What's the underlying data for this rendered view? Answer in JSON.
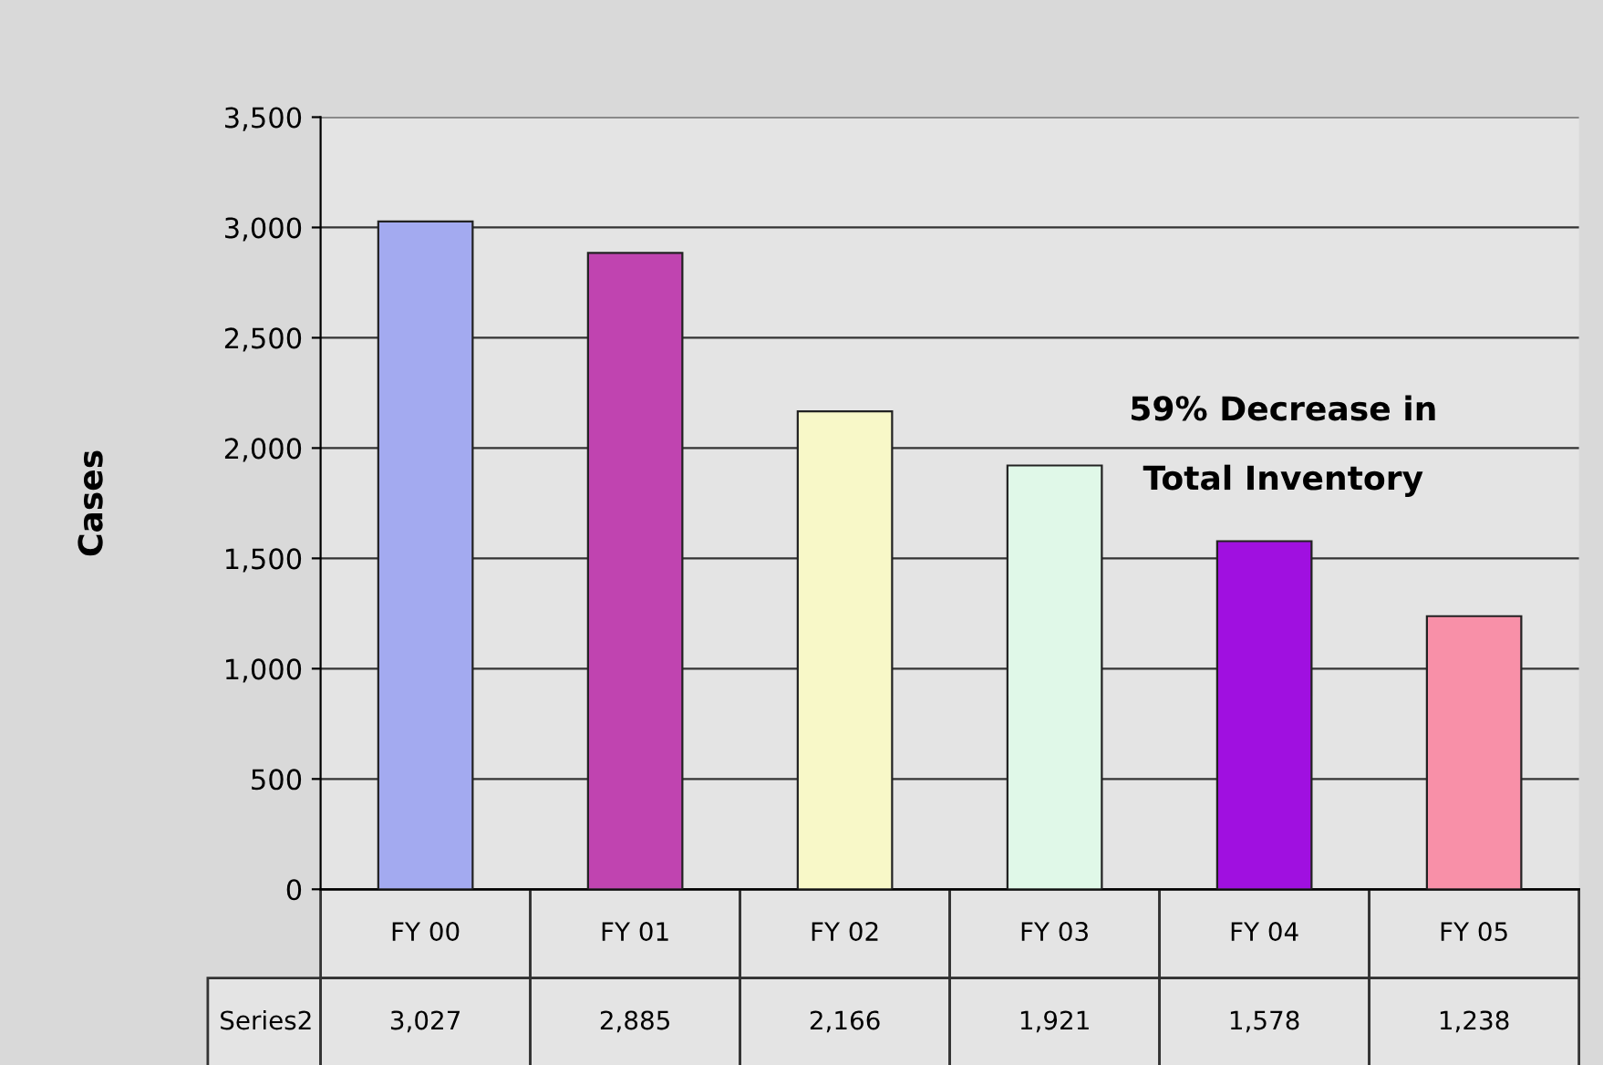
{
  "chart_data": {
    "type": "bar",
    "ylabel": "Cases",
    "categories": [
      "FY 00",
      "FY 01",
      "FY 02",
      "FY 03",
      "FY 04",
      "FY 05"
    ],
    "series": [
      {
        "name": "Series2",
        "values": [
          3027,
          2885,
          2166,
          1921,
          1578,
          1238
        ],
        "value_labels": [
          "3,027",
          "2,885",
          "2,166",
          "1,921",
          "1,578",
          "1,238"
        ],
        "colors": [
          "#a3aaf0",
          "#c044b0",
          "#f8f8c8",
          "#e0f8e8",
          "#a010e0",
          "#f890a8"
        ]
      }
    ],
    "ylim": [
      0,
      3500
    ],
    "yticks": [
      0,
      {
        "value": 500,
        "label": "500"
      },
      {
        "value": 1000,
        "label": "1,000"
      },
      {
        "value": 1500,
        "label": "1,500"
      },
      {
        "value": 2000,
        "label": "2,000"
      },
      {
        "value": 2500,
        "label": "2,500"
      },
      {
        "value": 3000,
        "label": "3,000"
      },
      {
        "value": 3500,
        "label": "3,500"
      }
    ],
    "grid": "y",
    "legend": false,
    "annotations": [
      "59% Decrease in\nTotal Inventory"
    ]
  }
}
